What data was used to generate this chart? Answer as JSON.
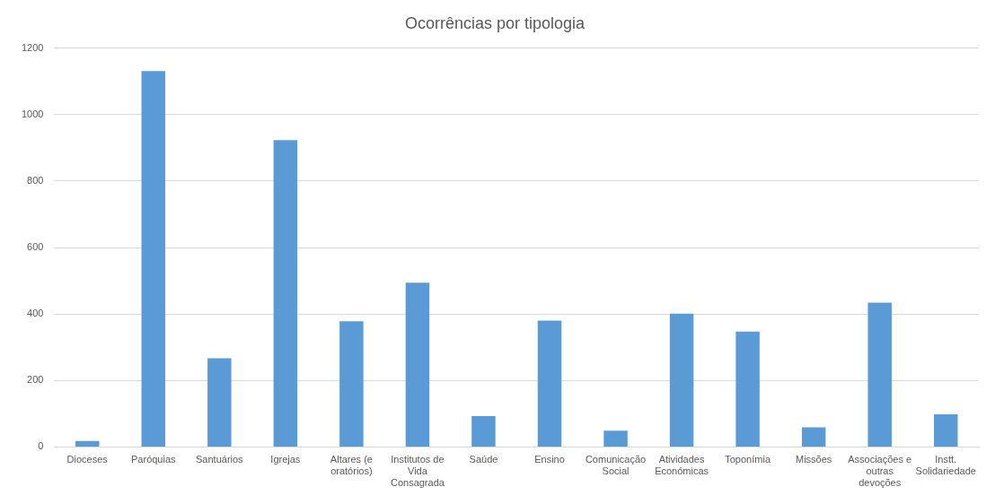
{
  "chart_data": {
    "type": "bar",
    "title": "Ocorrências por tipologia",
    "categories": [
      "Dioceses",
      "Paróquias",
      "Santuários",
      "Igrejas",
      "Altares (e oratórios)",
      "Institutos de Vida Consagrada",
      "Saúde",
      "Ensino",
      "Comunicação Social",
      "Atividades Económicas",
      "Toponímia",
      "Missões",
      "Associações e outras devoções",
      "Instt. Solidariedade"
    ],
    "values": [
      18,
      1131,
      267,
      923,
      378,
      494,
      93,
      380,
      49,
      401,
      347,
      59,
      434,
      98
    ],
    "color": "#5b9bd5",
    "ylim": [
      0,
      1200
    ],
    "yticks": [
      0,
      200,
      400,
      600,
      800,
      1000,
      1200
    ],
    "grid": "y"
  }
}
